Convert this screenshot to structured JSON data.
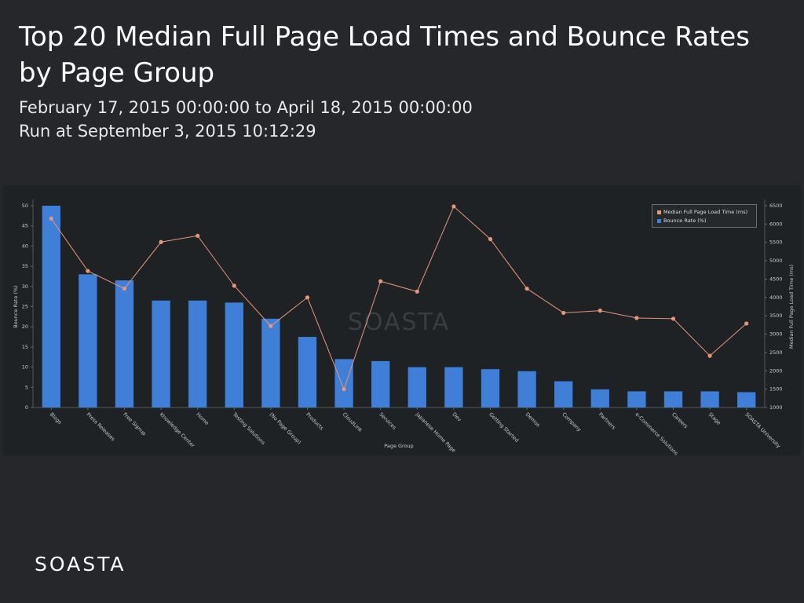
{
  "header": {
    "title": "Top 20 Median Full Page Load Times and Bounce Rates by Page Group",
    "date_range": "February 17, 2015 00:00:00 to April 18, 2015 00:00:00",
    "run_at": "Run at September 3, 2015 10:12:29"
  },
  "watermark": "SOASTA",
  "footer": {
    "logo_text": "SOASTA"
  },
  "colors": {
    "bar": "#3f7fd8",
    "line": "#e8967a",
    "background": "#25272b",
    "panel": "#1f2225"
  },
  "chart_data": {
    "type": "bar",
    "xlabel": "Page Group",
    "ylabel_left": "Bounce Rate (%)",
    "ylabel_right": "Median Full Page Load Time (ms)",
    "ylim_left": [
      0,
      50
    ],
    "ylim_right": [
      1000,
      6500
    ],
    "yticks_left": [
      0,
      5,
      10,
      15,
      20,
      25,
      30,
      35,
      40,
      45,
      50
    ],
    "yticks_right": [
      1000,
      1500,
      2000,
      2500,
      3000,
      3500,
      4000,
      4500,
      5000,
      5500,
      6000,
      6500
    ],
    "legend_position": "top-right",
    "categories": [
      "Blogs",
      "Press Releases",
      "Free Signup",
      "Knowledge Center",
      "Home",
      "Testing Solutions",
      "(No Page Group)",
      "Products",
      "CloudLink",
      "Services",
      "Japanese Home Page",
      "Dev",
      "Getting Started",
      "Demos",
      "Company",
      "Partners",
      "e-Commerce Solutions",
      "Careers",
      "Stage",
      "SOASTA University"
    ],
    "series": [
      {
        "name": "Median Full Page Load Time (ms)",
        "type": "line",
        "axis": "right",
        "values": [
          6150,
          4720,
          4240,
          5510,
          5680,
          4320,
          3220,
          4000,
          1500,
          4440,
          4160,
          6480,
          5590,
          4240,
          3580,
          3640,
          3440,
          3420,
          2410,
          3290
        ]
      },
      {
        "name": "Bounce Rate (%)",
        "type": "bar",
        "axis": "left",
        "values": [
          50,
          33,
          31.5,
          26.5,
          26.5,
          26,
          22,
          17.5,
          12,
          11.5,
          10,
          10,
          9.5,
          9,
          6.5,
          4.5,
          4,
          4,
          4,
          3.8
        ]
      }
    ]
  }
}
